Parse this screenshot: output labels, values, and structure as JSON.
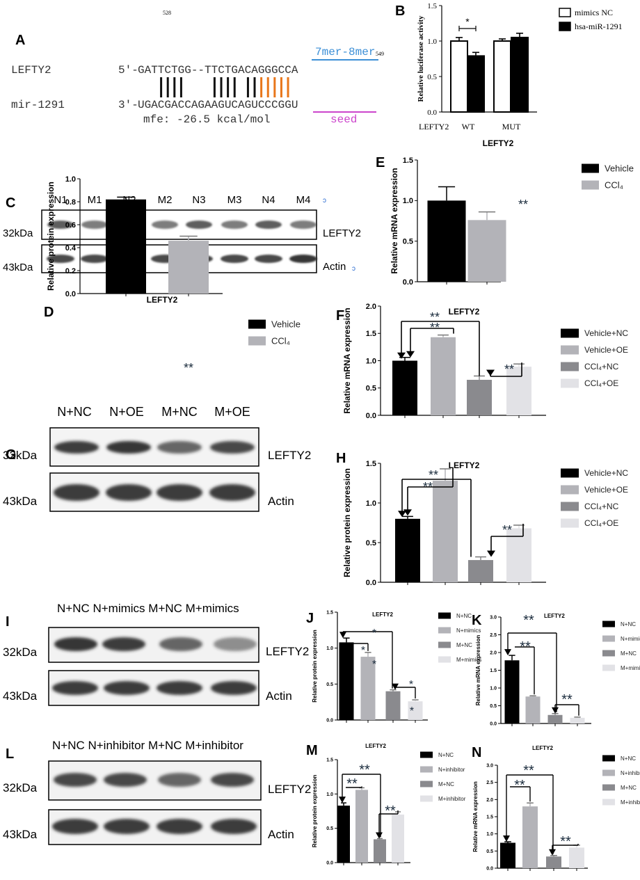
{
  "panel_letters": {
    "A": "A",
    "B": "B",
    "C": "C",
    "D": "D",
    "E": "E",
    "F": "F",
    "G": "G",
    "H": "H",
    "I": "I",
    "J": "J",
    "K": "K",
    "L": "L",
    "M": "M",
    "N": "N"
  },
  "panelA": {
    "pos_start": "528",
    "pos_end": "549",
    "site_label": "7mer-8mer",
    "row1_name": "LEFTY2",
    "row1_prefix": "5'-",
    "row1_seq": "GATTCTGG--TTCTGACAGGGCCA",
    "row2_name": "mir-1291",
    "row2_prefix": "3'-",
    "row2_seq": "UGACGACCAGAAGUCAGUCCCGGU",
    "mfe": "mfe: -26.5 kcal/mol",
    "seed": "seed",
    "pairs": [
      0,
      1,
      1,
      1,
      1,
      0,
      0,
      0,
      0,
      1,
      1,
      1,
      1,
      0,
      1,
      1,
      1,
      1,
      1,
      1,
      1,
      0
    ],
    "colors": {
      "site_blue": "#3c8fd6",
      "seed_pink": "#cc44cc",
      "pair_orange": "#e8761a"
    }
  },
  "wb_labels": {
    "kda_32": "32kDa",
    "kda_43": "43kDa",
    "lefty2": "LEFTY2",
    "actin": "Actin"
  },
  "panelC_lanes": [
    "N1",
    "M1",
    "N2",
    "M2",
    "N3",
    "M3",
    "N4",
    "M4"
  ],
  "panelG_lanes": [
    "N+NC",
    "N+OE",
    "M+NC",
    "M+OE"
  ],
  "panelI_lanes": "N+NC N+mimics M+NC M+mimics",
  "panelL_lanes": "N+NC N+inhibitor M+NC M+inhibitor",
  "chart_data": [
    {
      "panel": "B",
      "type": "bar",
      "title": "LEFTY2",
      "ylabel": "Relative luciferase activity",
      "ylim": [
        0,
        1.5
      ],
      "yticks": [
        "0.0",
        "0.5",
        "1.0",
        "1.5"
      ],
      "categories": [
        "WT",
        "MUT"
      ],
      "group_label": "LEFTY2",
      "series": [
        {
          "name": "mimics NC",
          "values": [
            1.0,
            1.0
          ],
          "err": [
            0.05,
            0.03
          ]
        },
        {
          "name": "hsa-miR-1291",
          "values": [
            0.79,
            1.05
          ],
          "err": [
            0.05,
            0.06
          ]
        }
      ],
      "annotations": [
        "*"
      ]
    },
    {
      "panel": "E",
      "type": "bar",
      "ylabel": "Relative mRNA expression",
      "ylim": [
        0,
        1.5
      ],
      "yticks": [
        "0.0",
        "0.5",
        "1.0",
        "1.5"
      ],
      "categories": [
        "Vehicle",
        "CCl4"
      ],
      "values": [
        1.0,
        0.76
      ],
      "err": [
        0.17,
        0.1
      ],
      "legend": [
        "Vehicle",
        "CCl₄"
      ],
      "annotations": [
        "**"
      ]
    },
    {
      "panel": "D",
      "type": "bar",
      "title": "LEFTY2",
      "ylabel": "Relative protein expression",
      "ylim": [
        0,
        1.0
      ],
      "yticks": [
        "0.0",
        "0.2",
        "0.4",
        "0.6",
        "0.8",
        "1.0"
      ],
      "categories": [
        "Vehicle",
        "CCl4"
      ],
      "values": [
        0.82,
        0.46
      ],
      "err": [
        0.02,
        0.04
      ],
      "legend": [
        "Vehicle",
        "CCl₄"
      ],
      "annotations": [
        "**"
      ]
    },
    {
      "panel": "F",
      "type": "bar",
      "title": "LEFTY2",
      "ylabel": "Relative mRNA expression",
      "ylim": [
        0,
        2.0
      ],
      "yticks": [
        "0.0",
        "0.5",
        "1.0",
        "1.5",
        "2.0"
      ],
      "categories": [
        "Vehicle+NC",
        "Vehicle+OE",
        "CCl4+NC",
        "CCl4+OE"
      ],
      "values": [
        1.0,
        1.43,
        0.65,
        0.89
      ],
      "err": [
        0.06,
        0.04,
        0.07,
        0.05
      ],
      "legend": [
        "Vehicle+NC",
        "Vehicle+OE",
        "CCl₄+NC",
        "CCl₄+OE"
      ],
      "annotations": [
        "**",
        "**",
        "**"
      ]
    },
    {
      "panel": "H",
      "type": "bar",
      "title": "LEFTY2",
      "ylabel": "Relative protein expression",
      "ylim": [
        0,
        1.5
      ],
      "yticks": [
        "0.0",
        "0.5",
        "1.0",
        "1.5"
      ],
      "categories": [
        "Vehicle+NC",
        "Vehicle+OE",
        "CCl4+NC",
        "CCl4+OE"
      ],
      "values": [
        0.8,
        1.28,
        0.28,
        0.68
      ],
      "err": [
        0.03,
        0.15,
        0.04,
        0.04
      ],
      "legend": [
        "Vehicle+NC",
        "Vehicle+OE",
        "CCl₄+NC",
        "CCl₄+OE"
      ],
      "annotations": [
        "**",
        "**",
        "**"
      ]
    },
    {
      "panel": "J",
      "type": "bar",
      "title": "LEFTY2",
      "ylabel": "Relative protein expression",
      "ylim": [
        0,
        1.5
      ],
      "yticks": [
        "0.0",
        "0.5",
        "1.0",
        "1.5"
      ],
      "categories": [
        "N+NC",
        "N+mimics",
        "M+NC",
        "M+mimics"
      ],
      "values": [
        1.08,
        0.88,
        0.4,
        0.26
      ],
      "err": [
        0.06,
        0.06,
        0.02,
        0.02
      ],
      "legend": [
        "N+NC",
        "N+mimics",
        "M+NC",
        "M+mimics"
      ],
      "annotations": [
        "*",
        "*",
        "*"
      ]
    },
    {
      "panel": "K",
      "type": "bar",
      "title": "LEFTY2",
      "ylabel": "Relative mRNA expression",
      "ylim": [
        0,
        3.0
      ],
      "yticks": [
        "0.0",
        "0.5",
        "1.0",
        "1.5",
        "2.0",
        "2.5",
        "3.0"
      ],
      "categories": [
        "N+NC",
        "N+mimics",
        "M+NC",
        "M+mimics"
      ],
      "values": [
        1.78,
        0.76,
        0.24,
        0.16
      ],
      "err": [
        0.14,
        0.02,
        0.04,
        0.02
      ],
      "legend": [
        "N+NC",
        "N+mimics",
        "M+NC",
        "M+mimics"
      ],
      "annotations": [
        "**",
        "**",
        "**"
      ]
    },
    {
      "panel": "M",
      "type": "bar",
      "title": "LEFTY2",
      "ylabel": "Relative protein expression",
      "ylim": [
        0,
        1.5
      ],
      "yticks": [
        "0.0",
        "0.5",
        "1.0",
        "1.5"
      ],
      "categories": [
        "N+NC",
        "N+inhibitor",
        "M+NC",
        "M+inhibitor"
      ],
      "values": [
        0.83,
        1.06,
        0.34,
        0.7
      ],
      "err": [
        0.04,
        0.03,
        0.01,
        0.04
      ],
      "legend": [
        "N+NC",
        "N+inhibitor",
        "M+NC",
        "M+inhibitor"
      ],
      "annotations": [
        "**",
        "**",
        "**"
      ]
    },
    {
      "panel": "N",
      "type": "bar",
      "title": "LEFTY2",
      "ylabel": "Relative mRNA expression",
      "ylim": [
        0,
        3.0
      ],
      "yticks": [
        "0.0",
        "0.5",
        "1.0",
        "1.5",
        "2.0",
        "2.5",
        "3.0"
      ],
      "categories": [
        "N+NC",
        "N+inhibitor",
        "M+NC",
        "M+inhibitor"
      ],
      "values": [
        0.74,
        1.8,
        0.34,
        0.6
      ],
      "err": [
        0.03,
        0.1,
        0.03,
        0.07
      ],
      "legend": [
        "N+NC",
        "N+inhibitor",
        "M+NC",
        "M+inhibitor"
      ],
      "annotations": [
        "**",
        "**",
        "**"
      ]
    }
  ],
  "colors": {
    "black": "#000000",
    "light_gray": "#b3b3b8",
    "mid_gray": "#8a8a8e",
    "pale_gray": "#e2e2e6",
    "axis": "#000000",
    "star_dark": "#1a2b3c"
  }
}
